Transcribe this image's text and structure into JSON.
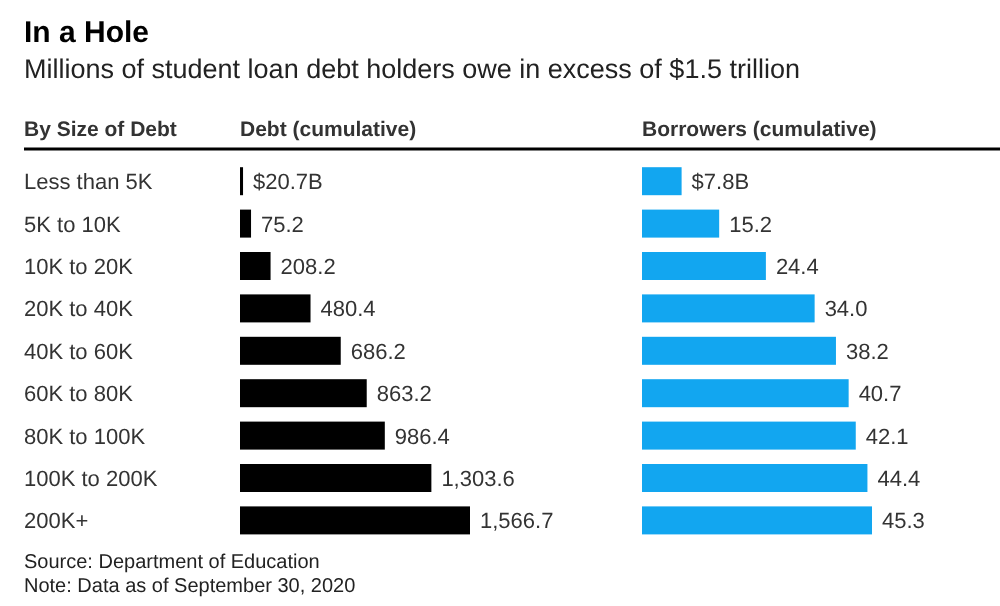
{
  "chart_data": [
    {
      "type": "bar",
      "orientation": "horizontal",
      "title": "In a Hole",
      "subtitle": "Millions of student loan debt holders owe in excess of $1.5 trillion",
      "ylabel": "By Size of Debt",
      "xlabel": "Debt (cumulative)",
      "categories": [
        "Less than 5K",
        "5K to 10K",
        "10K to 20K",
        "20K to 40K",
        "40K to 60K",
        "60K to 80K",
        "80K to 100K",
        "100K to 200K",
        "200K+"
      ],
      "values": [
        20.7,
        75.2,
        208.2,
        480.4,
        686.2,
        863.2,
        986.4,
        1303.6,
        1566.7
      ],
      "value_labels": [
        "$20.7B",
        "75.2",
        "208.2",
        "480.4",
        "686.2",
        "863.2",
        "986.4",
        "1,303.6",
        "1,566.7"
      ],
      "color": "#000000",
      "annotations": [
        "Source: Department of Education",
        "Note: Data as of September 30, 2020"
      ]
    },
    {
      "type": "bar",
      "orientation": "horizontal",
      "xlabel": "Borrowers (cumulative)",
      "tick_labels": false,
      "categories": [
        "Less than 5K",
        "5K to 10K",
        "10K to 20K",
        "20K to 40K",
        "40K to 60K",
        "60K to 80K",
        "80K to 100K",
        "100K to 200K",
        "200K+"
      ],
      "values": [
        7.8,
        15.2,
        24.4,
        34.0,
        38.2,
        40.7,
        42.1,
        44.4,
        45.3
      ],
      "value_labels": [
        "$7.8B",
        "15.2",
        "24.4",
        "34.0",
        "38.2",
        "40.7",
        "42.1",
        "44.4",
        "45.3"
      ],
      "color": "#12a6f0"
    }
  ]
}
